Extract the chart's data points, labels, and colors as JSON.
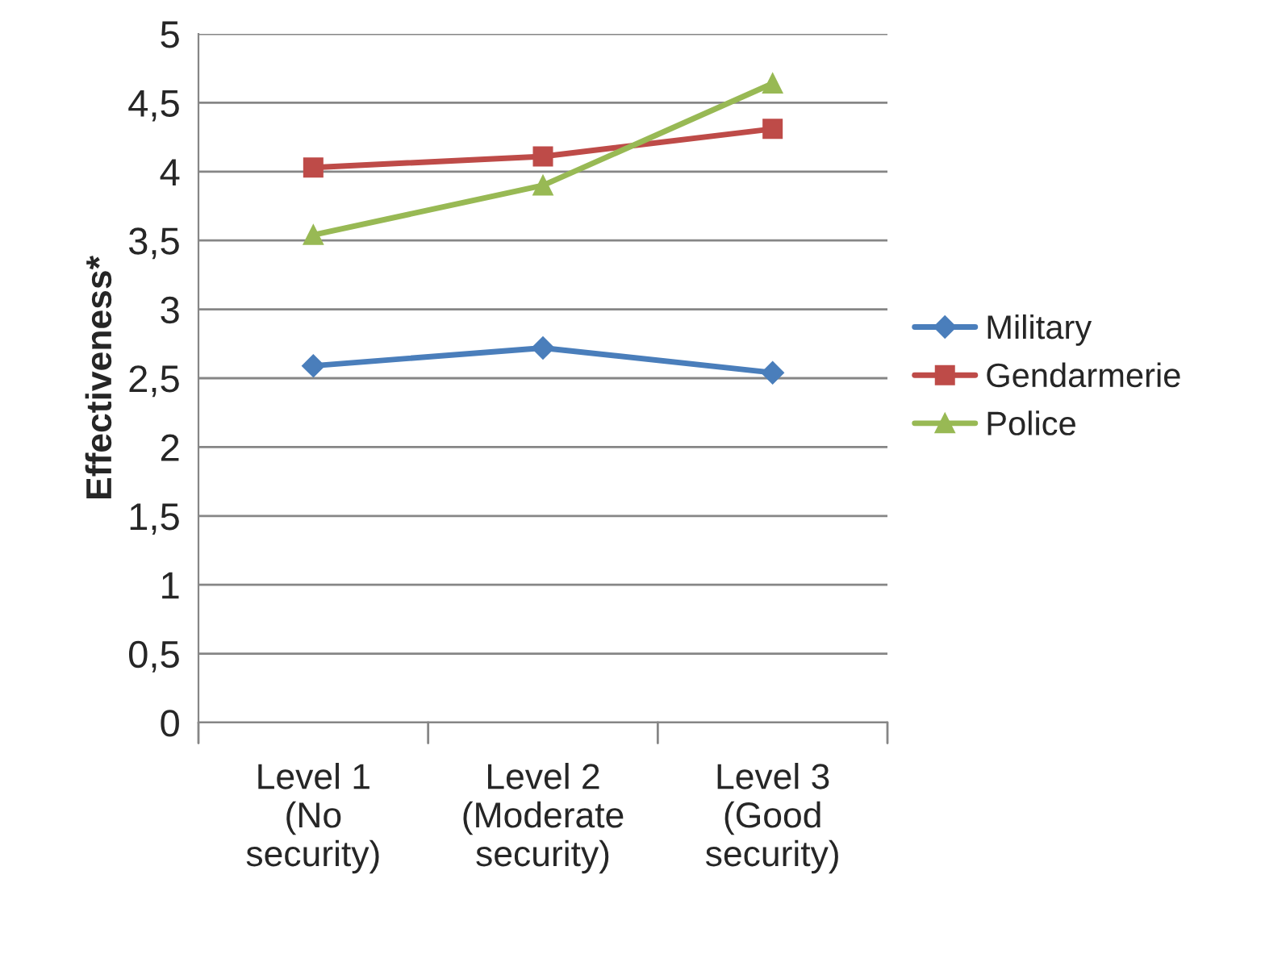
{
  "chart_data": {
    "type": "line",
    "ylabel": "Effectiveness*",
    "categories": [
      "Level 1\n(No\nsecurity)",
      "Level 2\n(Moderate\nsecurity)",
      "Level 3\n(Good\nsecurity)"
    ],
    "series": [
      {
        "name": "Military",
        "color": "#4a7ebb",
        "marker": "diamond",
        "values": [
          2.59,
          2.72,
          2.54
        ]
      },
      {
        "name": "Gendarmerie",
        "color": "#be4b48",
        "marker": "square",
        "values": [
          4.03,
          4.11,
          4.31
        ]
      },
      {
        "name": "Police",
        "color": "#98b954",
        "marker": "triangle",
        "values": [
          3.54,
          3.9,
          4.64
        ]
      }
    ],
    "ylim": [
      0,
      5
    ],
    "yticks": [
      0,
      {
        "value": 0.5,
        "label": "0,5"
      },
      1,
      {
        "value": 1.5,
        "label": "1,5"
      },
      2,
      {
        "value": 2.5,
        "label": "2,5"
      },
      3,
      {
        "value": 3.5,
        "label": "3,5"
      },
      4,
      {
        "value": 4.5,
        "label": "4,5"
      },
      5
    ],
    "grid": "y",
    "legend": "right",
    "line_style": "solid"
  }
}
